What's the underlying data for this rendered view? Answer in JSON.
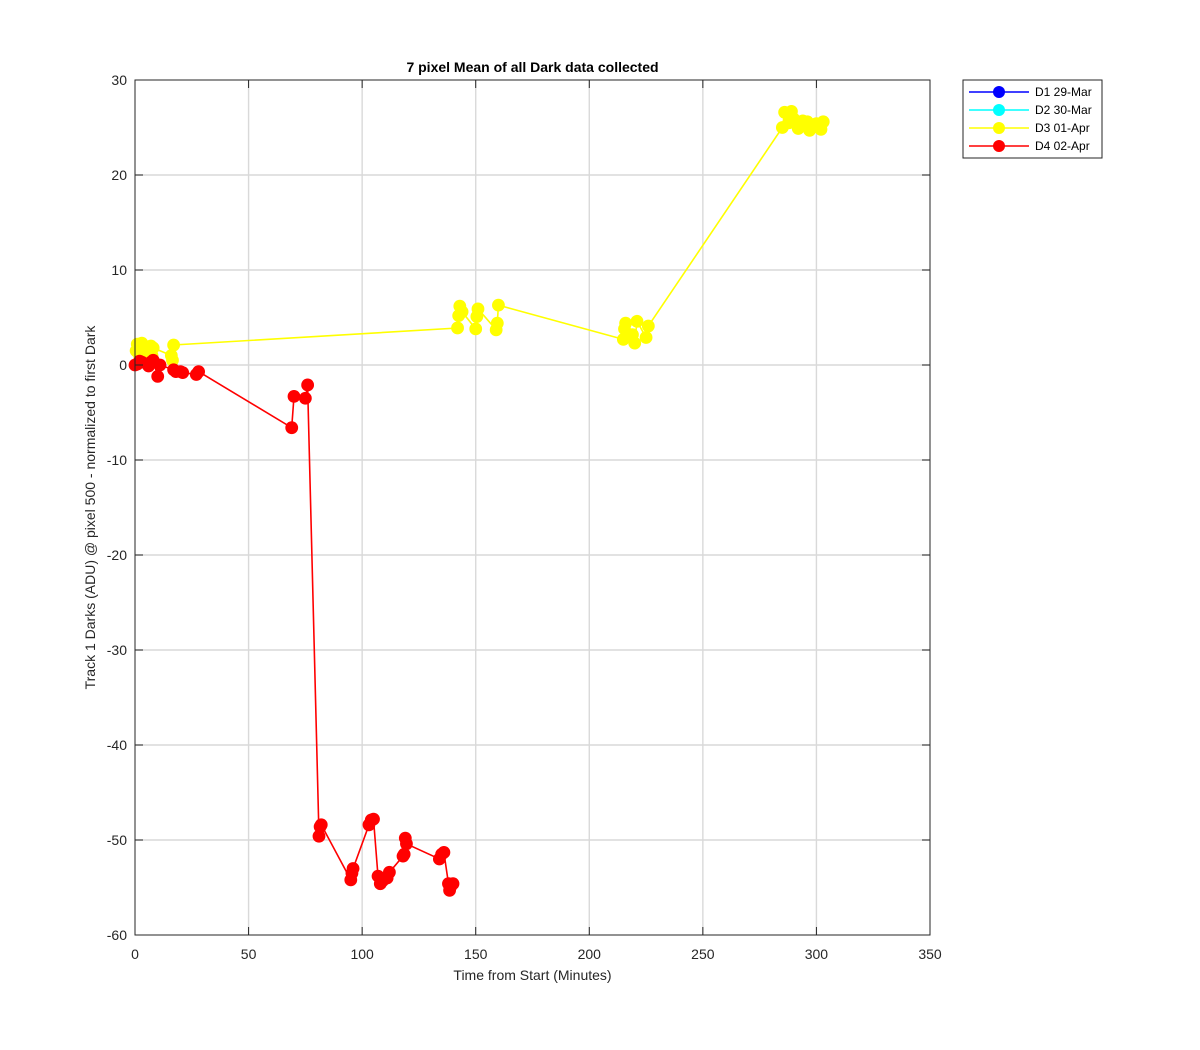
{
  "chart_data": {
    "type": "line",
    "title": "7 pixel Mean of all Dark data collected",
    "xlabel": "Time from Start (Minutes)",
    "ylabel": "Track 1 Darks (ADU) @ pixel 500 - normalized to first Dark",
    "xlim": [
      0,
      350
    ],
    "ylim": [
      -60,
      30
    ],
    "xticks": [
      0,
      50,
      100,
      150,
      200,
      250,
      300,
      350
    ],
    "yticks": [
      30,
      20,
      10,
      0,
      -10,
      -20,
      -30,
      -40,
      -50,
      -60
    ],
    "grid": true,
    "legend_position": "outside-top-right",
    "series": [
      {
        "name": "D1 29-Mar",
        "color": "#0000ff",
        "points": []
      },
      {
        "name": "D2 30-Mar",
        "color": "#00ffff",
        "points": []
      },
      {
        "name": "D3 01-Apr",
        "color": "#ffff00",
        "points": [
          [
            0.5,
            1.5
          ],
          [
            1,
            2.2
          ],
          [
            2,
            1.0
          ],
          [
            3,
            2.3
          ],
          [
            4,
            1.6
          ],
          [
            5,
            1.9
          ],
          [
            6,
            1.2
          ],
          [
            7,
            2.0
          ],
          [
            7.5,
            1.0
          ],
          [
            8,
            1.8
          ],
          [
            16,
            1.0
          ],
          [
            16.5,
            0.5
          ],
          [
            17,
            2.1
          ],
          [
            142,
            3.9
          ],
          [
            142.5,
            5.2
          ],
          [
            143,
            6.2
          ],
          [
            144,
            5.6
          ],
          [
            150,
            3.8
          ],
          [
            150.5,
            5.1
          ],
          [
            151,
            5.9
          ],
          [
            159,
            3.7
          ],
          [
            159.5,
            4.4
          ],
          [
            160,
            6.3
          ],
          [
            215,
            2.7
          ],
          [
            215.5,
            3.8
          ],
          [
            216,
            4.4
          ],
          [
            219,
            3.2
          ],
          [
            220,
            2.3
          ],
          [
            221,
            4.6
          ],
          [
            225,
            2.9
          ],
          [
            226,
            4.1
          ],
          [
            285,
            25.0
          ],
          [
            286,
            26.6
          ],
          [
            288,
            25.5
          ],
          [
            289,
            26.7
          ],
          [
            290,
            25.9
          ],
          [
            292,
            24.9
          ],
          [
            294,
            25.7
          ],
          [
            296,
            25.6
          ],
          [
            297,
            24.7
          ],
          [
            298,
            25.2
          ],
          [
            300,
            25.4
          ],
          [
            302,
            24.8
          ],
          [
            303,
            25.6
          ]
        ]
      },
      {
        "name": "D4 02-Apr",
        "color": "#ff0000",
        "points": [
          [
            0,
            0.0
          ],
          [
            1,
            0.1
          ],
          [
            2,
            0.4
          ],
          [
            3,
            0.3
          ],
          [
            6,
            -0.1
          ],
          [
            7,
            0.3
          ],
          [
            8,
            0.5
          ],
          [
            10,
            -1.2
          ],
          [
            11,
            0.0
          ],
          [
            17,
            -0.5
          ],
          [
            18,
            -0.7
          ],
          [
            20,
            -0.7
          ],
          [
            21,
            -0.8
          ],
          [
            27,
            -1.0
          ],
          [
            28,
            -0.7
          ],
          [
            69,
            -6.6
          ],
          [
            70,
            -3.3
          ],
          [
            75,
            -3.5
          ],
          [
            76,
            -2.1
          ],
          [
            81,
            -49.6
          ],
          [
            81.5,
            -48.6
          ],
          [
            82,
            -48.4
          ],
          [
            95,
            -54.2
          ],
          [
            95.5,
            -53.5
          ],
          [
            96,
            -53.0
          ],
          [
            103,
            -48.4
          ],
          [
            104,
            -47.9
          ],
          [
            105,
            -47.8
          ],
          [
            107,
            -53.8
          ],
          [
            108,
            -54.6
          ],
          [
            109,
            -54.3
          ],
          [
            111,
            -54.0
          ],
          [
            112,
            -53.4
          ],
          [
            118,
            -51.7
          ],
          [
            118.5,
            -51.5
          ],
          [
            119,
            -49.8
          ],
          [
            119.5,
            -50.4
          ],
          [
            134,
            -52.0
          ],
          [
            135,
            -51.5
          ],
          [
            136,
            -51.3
          ],
          [
            138,
            -54.6
          ],
          [
            138.5,
            -55.3
          ],
          [
            139,
            -54.9
          ],
          [
            140,
            -54.6
          ]
        ]
      }
    ]
  }
}
